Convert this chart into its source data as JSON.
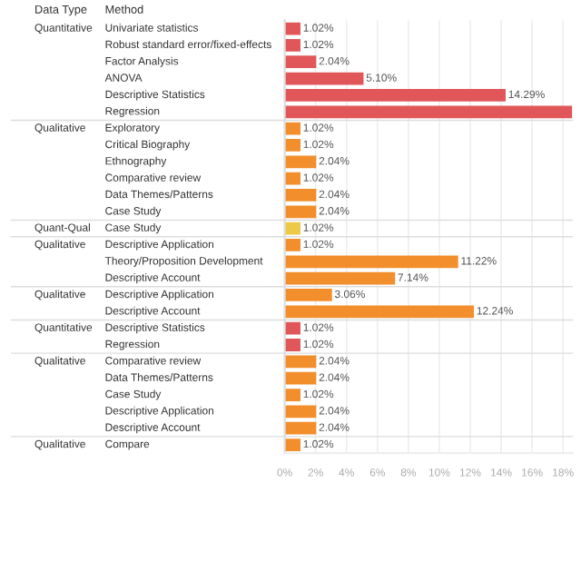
{
  "chart_data": [
    {
      "type": "bar",
      "orientation": "horizontal",
      "ylabel": "Quantitative",
      "annotations": [
        "Data Type",
        "Method"
      ],
      "categories": [
        "Univariate statistics",
        "Robust standard error/fixed-effects",
        "Factor Analysis",
        "ANOVA",
        "Descriptive Statistics",
        "Regression"
      ],
      "values": [
        1.02,
        1.02,
        2.04,
        5.1,
        14.29,
        18.6
      ],
      "color": "#e15759",
      "value_labels": [
        "1.02%",
        "1.02%",
        "2.04%",
        "5.10%",
        "14.29%",
        null
      ],
      "xlim": [
        0,
        18.6
      ],
      "xticks": [
        0,
        2,
        4,
        6,
        8,
        10,
        12,
        14,
        16,
        18
      ],
      "tick_labels": false,
      "grid": "x"
    },
    {
      "type": "bar",
      "orientation": "horizontal",
      "ylabel": "Qualitative",
      "categories": [
        "Exploratory",
        "Critical Biography",
        "Ethnography",
        "Comparative review",
        "Data Themes/Patterns",
        "Case Study"
      ],
      "values": [
        1.02,
        1.02,
        2.04,
        1.02,
        2.04,
        2.04
      ],
      "color": "#f28e2b",
      "value_labels": [
        "1.02%",
        "1.02%",
        "2.04%",
        "1.02%",
        "2.04%",
        "2.04%"
      ],
      "xlim": [
        0,
        18.6
      ],
      "xticks": [
        0,
        2,
        4,
        6,
        8,
        10,
        12,
        14,
        16,
        18
      ],
      "tick_labels": false,
      "grid": "x"
    },
    {
      "type": "bar",
      "orientation": "horizontal",
      "ylabel": "Quant-Qual",
      "categories": [
        "Case Study"
      ],
      "values": [
        1.02
      ],
      "color": "#edc948",
      "value_labels": [
        "1.02%"
      ],
      "xlim": [
        0,
        18.6
      ],
      "xticks": [
        0,
        2,
        4,
        6,
        8,
        10,
        12,
        14,
        16,
        18
      ],
      "tick_labels": false,
      "grid": "x"
    },
    {
      "type": "bar",
      "orientation": "horizontal",
      "ylabel": "Qualitative",
      "categories": [
        "Descriptive Application",
        "Theory/Proposition Development",
        "Descriptive Account"
      ],
      "values": [
        1.02,
        11.22,
        7.14
      ],
      "color": "#f28e2b",
      "value_labels": [
        "1.02%",
        "11.22%",
        "7.14%"
      ],
      "xlim": [
        0,
        18.6
      ],
      "xticks": [
        0,
        2,
        4,
        6,
        8,
        10,
        12,
        14,
        16,
        18
      ],
      "tick_labels": false,
      "grid": "x"
    },
    {
      "type": "bar",
      "orientation": "horizontal",
      "ylabel": "Qualitative",
      "categories": [
        "Descriptive Application",
        "Descriptive Account"
      ],
      "values": [
        3.06,
        12.24
      ],
      "color": "#f28e2b",
      "value_labels": [
        "3.06%",
        "12.24%"
      ],
      "xlim": [
        0,
        18.6
      ],
      "xticks": [
        0,
        2,
        4,
        6,
        8,
        10,
        12,
        14,
        16,
        18
      ],
      "tick_labels": false,
      "grid": "x"
    },
    {
      "type": "bar",
      "orientation": "horizontal",
      "ylabel": "Quantitative",
      "categories": [
        "Descriptive Statistics",
        "Regression"
      ],
      "values": [
        1.02,
        1.02
      ],
      "color": "#e15759",
      "value_labels": [
        "1.02%",
        "1.02%"
      ],
      "xlim": [
        0,
        18.6
      ],
      "xticks": [
        0,
        2,
        4,
        6,
        8,
        10,
        12,
        14,
        16,
        18
      ],
      "tick_labels": false,
      "grid": "x"
    },
    {
      "type": "bar",
      "orientation": "horizontal",
      "ylabel": "Qualitative",
      "categories": [
        "Comparative review",
        "Data Themes/Patterns",
        "Case Study",
        "Descriptive Application",
        "Descriptive Account"
      ],
      "values": [
        2.04,
        2.04,
        1.02,
        2.04,
        2.04
      ],
      "color": "#f28e2b",
      "value_labels": [
        "2.04%",
        "2.04%",
        "1.02%",
        "2.04%",
        "2.04%"
      ],
      "xlim": [
        0,
        18.6
      ],
      "xticks": [
        0,
        2,
        4,
        6,
        8,
        10,
        12,
        14,
        16,
        18
      ],
      "tick_labels": false,
      "grid": "x"
    },
    {
      "type": "bar",
      "orientation": "horizontal",
      "ylabel": "Qualitative",
      "categories": [
        "Compare"
      ],
      "values": [
        1.02
      ],
      "color": "#f28e2b",
      "value_labels": [
        "1.02%"
      ],
      "xlim": [
        0,
        18.6
      ],
      "xticks": [
        {
          "value": 0,
          "label": "0%"
        },
        {
          "value": 2,
          "label": "2%"
        },
        {
          "value": 4,
          "label": "4%"
        },
        {
          "value": 6,
          "label": "6%"
        },
        {
          "value": 8,
          "label": "8%"
        },
        {
          "value": 10,
          "label": "10%"
        },
        {
          "value": 12,
          "label": "12%"
        },
        {
          "value": 14,
          "label": "14%"
        },
        {
          "value": 16,
          "label": "16%"
        },
        {
          "value": 18,
          "label": "18%"
        }
      ],
      "tick_labels": "x",
      "grid": "x"
    }
  ]
}
